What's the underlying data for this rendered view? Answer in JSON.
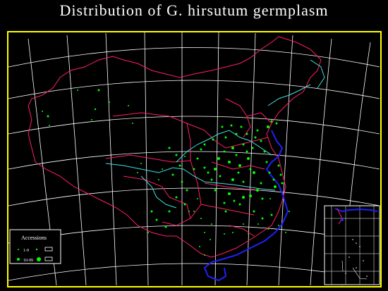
{
  "title": "Distribution  of G. hirsutum  germplasm",
  "legend": {
    "heading": "Accessions",
    "rows": [
      {
        "label": "1-9"
      },
      {
        "label": "10-99"
      }
    ]
  },
  "colors": {
    "background": "#000000",
    "frame": "#ffff00",
    "graticule": "#ffffff",
    "province_borders": "#ff2060",
    "rivers": "#40e0e0",
    "coast": "#2020ff",
    "points": "#00ff00"
  },
  "inset": {
    "description_hidden": true
  }
}
